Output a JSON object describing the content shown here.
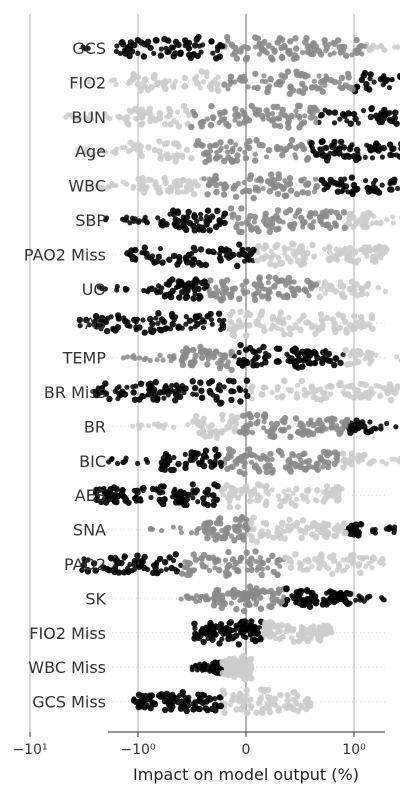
{
  "chart_data": {
    "type": "scatter",
    "subtype": "beeswarm",
    "title": "",
    "xlabel": "Impact on model output (%)",
    "ylabel": "",
    "x_scale": "symlog",
    "x_tick_labels": [
      "−10¹",
      "−10⁰",
      "0",
      "10⁰",
      "10¹"
    ],
    "x_tick_values": [
      -10,
      -1,
      0,
      1,
      10
    ],
    "xlim": [
      -40,
      30
    ],
    "grid": true,
    "legend": "none",
    "colors": {
      "high": "#000000",
      "mid": "#8a8a8a",
      "low": "#cccccc",
      "axis": "#333333",
      "gridline": "#b0b0b0"
    },
    "features": [
      {
        "name": "GCS",
        "min": -3.5,
        "max": 28,
        "dense_min": -1.5,
        "dense_max": 1.2,
        "colors": [
          "black",
          "gray",
          "lightgray"
        ]
      },
      {
        "name": "FIO2",
        "min": -3,
        "max": 17,
        "dense_min": -1.2,
        "dense_max": 8,
        "colors": [
          "lightgray",
          "gray",
          "black"
        ]
      },
      {
        "name": "BUN",
        "min": -5,
        "max": 7,
        "dense_min": -1.5,
        "dense_max": 3,
        "colors": [
          "lightgray",
          "gray",
          "black"
        ]
      },
      {
        "name": "Age",
        "min": -4,
        "max": 5,
        "dense_min": -1.2,
        "dense_max": 3,
        "colors": [
          "lightgray",
          "gray",
          "black"
        ]
      },
      {
        "name": "WBC",
        "min": -3,
        "max": 6,
        "dense_min": -1,
        "dense_max": 2.5,
        "colors": [
          "lightgray",
          "gray",
          "black"
        ]
      },
      {
        "name": "SBP",
        "min": -2,
        "max": 11,
        "dense_min": -0.8,
        "dense_max": 1.5,
        "colors": [
          "black",
          "gray",
          "lightgray"
        ]
      },
      {
        "name": "PAO2 Miss",
        "min": -1.3,
        "max": 2,
        "dense_min": -1.3,
        "dense_max": 2,
        "colors": [
          "black",
          "lightgray"
        ]
      },
      {
        "name": "UO",
        "min": -2.5,
        "max": 5,
        "dense_min": -0.8,
        "dense_max": 1.5,
        "colors": [
          "black",
          "gray",
          "lightgray"
        ]
      },
      {
        "name": "AS",
        "min": -3.5,
        "max": 1.5,
        "dense_min": -3.5,
        "dense_max": 1.5,
        "colors": [
          "black",
          "lightgray"
        ]
      },
      {
        "name": "TEMP",
        "min": -1.5,
        "max": 9,
        "dense_min": -0.6,
        "dense_max": 1.5,
        "colors": [
          "gray",
          "black",
          "lightgray"
        ]
      },
      {
        "name": "BR Miss",
        "min": -2.5,
        "max": 3,
        "dense_min": -2.5,
        "dense_max": 3,
        "colors": [
          "black",
          "lightgray"
        ]
      },
      {
        "name": "BR",
        "min": -1.2,
        "max": 9,
        "dense_min": -0.5,
        "dense_max": 1.5,
        "colors": [
          "lightgray",
          "gray",
          "black"
        ]
      },
      {
        "name": "BIC",
        "min": -2,
        "max": 9,
        "dense_min": -0.8,
        "dense_max": 1.5,
        "colors": [
          "black",
          "gray",
          "lightgray"
        ]
      },
      {
        "name": "AES",
        "min": -2.5,
        "max": 0.9,
        "dense_min": -2.5,
        "dense_max": 0.9,
        "colors": [
          "black",
          "lightgray"
        ]
      },
      {
        "name": "SNA",
        "min": -0.9,
        "max": 7,
        "dense_min": -0.4,
        "dense_max": 1.2,
        "colors": [
          "gray",
          "lightgray",
          "black"
        ]
      },
      {
        "name": "PAO2",
        "min": -3.5,
        "max": 2,
        "dense_min": -3.5,
        "dense_max": 2,
        "colors": [
          "black",
          "gray",
          "lightgray"
        ]
      },
      {
        "name": "SK",
        "min": -0.6,
        "max": 2,
        "dense_min": -0.3,
        "dense_max": 1,
        "colors": [
          "gray",
          "black"
        ]
      },
      {
        "name": "FIO2 Miss",
        "min": -0.5,
        "max": 0.8,
        "dense_min": -0.5,
        "dense_max": 0.8,
        "colors": [
          "black",
          "lightgray"
        ]
      },
      {
        "name": "WBC Miss",
        "min": -0.5,
        "max": 0.05,
        "dense_min": -0.3,
        "dense_max": 0.05,
        "colors": [
          "black",
          "lightgray"
        ]
      },
      {
        "name": "GCS Miss",
        "min": -1.1,
        "max": 0.6,
        "dense_min": -1.1,
        "dense_max": 0.6,
        "colors": [
          "black",
          "lightgray"
        ]
      }
    ]
  }
}
